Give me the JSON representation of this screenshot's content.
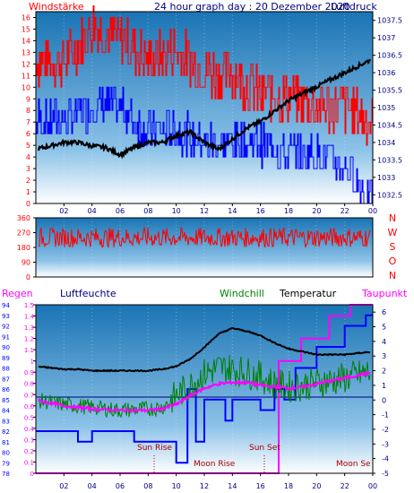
{
  "colors": {
    "red": "#ff0000",
    "blue": "#0000ff",
    "black": "#000000",
    "green": "#008000",
    "magenta": "#ff00ff",
    "navy": "#000080",
    "plot_top": "#1a74b4",
    "plot_bottom": "#ffffff"
  },
  "header": {
    "left": "Windstärke",
    "center": "24 hour graph day : 20 Dezember 2020",
    "right": "Luftdruck"
  },
  "wind_dir_labels": [
    "N",
    "W",
    "S",
    "O",
    "N"
  ],
  "panel3_legend": {
    "regen": "Regen",
    "luftfeuchte": "Luftfeuchte",
    "windchill": "Windchill",
    "temperatur": "Temperatur",
    "taupunkt": "Taupunkt"
  },
  "annotations": {
    "sun_rise": "Sun Rise",
    "moon_rise": "Moon Rise",
    "sun_set": "Sun Set",
    "moon_set": "Moon Se"
  },
  "chart_data": [
    {
      "type": "line",
      "title": "24 hour graph day : 20 Dezember 2020",
      "x_ticks": [
        "02",
        "04",
        "06",
        "08",
        "10",
        "12",
        "14",
        "16",
        "18",
        "20",
        "22",
        "00"
      ],
      "y_left_label": "Windstärke",
      "y_left_ticks": [
        "0",
        "1",
        "2",
        "3",
        "4",
        "5",
        "6",
        "7",
        "8",
        "9",
        "10",
        "11",
        "12",
        "13",
        "14",
        "15",
        "16"
      ],
      "y_left_range": [
        0,
        16.5
      ],
      "y_right_label": "Luftdruck",
      "y_right_ticks": [
        "1032.5",
        "1033",
        "1033.5",
        "1034",
        "1034.5",
        "1035",
        "1035.5",
        "1036",
        "1036.5",
        "1037",
        "1037.5"
      ],
      "y_right_range": [
        1032.25,
        1037.75
      ],
      "series": [
        {
          "color": "#ff0000",
          "x_hours": [
            0,
            2,
            4,
            6,
            8,
            10,
            12,
            14,
            16,
            18,
            20,
            22,
            24
          ],
          "values": [
            13,
            13,
            16,
            15,
            13,
            14,
            12,
            12,
            10,
            10,
            9,
            9,
            8
          ]
        },
        {
          "color": "#0000ff",
          "x_hours": [
            0,
            2,
            4,
            6,
            8,
            10,
            12,
            14,
            16,
            18,
            20,
            22,
            24
          ],
          "values": [
            8,
            8,
            9,
            9,
            7,
            7,
            6,
            6,
            6,
            5,
            5,
            4,
            1
          ]
        },
        {
          "color": "#000000",
          "x_hours": [
            0,
            1,
            2,
            3,
            4,
            5,
            6,
            7,
            8,
            9,
            10,
            11,
            12,
            13,
            14,
            15,
            16,
            17,
            18,
            19,
            20,
            21,
            22,
            23,
            24
          ],
          "values": [
            1033.8,
            1033.9,
            1034.0,
            1034.0,
            1033.9,
            1033.85,
            1033.65,
            1033.85,
            1034.0,
            1034.0,
            1034.2,
            1034.3,
            1034.0,
            1033.8,
            1034.1,
            1034.4,
            1034.6,
            1034.9,
            1035.2,
            1035.4,
            1035.6,
            1035.8,
            1036.0,
            1036.2,
            1036.4
          ]
        }
      ]
    },
    {
      "type": "line",
      "y_ticks": [
        "0",
        "90",
        "180",
        "270",
        "360"
      ],
      "y_range": [
        0,
        360
      ],
      "series": [
        {
          "color": "#ff0000",
          "min_deg": 180,
          "max_deg": 300
        }
      ]
    },
    {
      "type": "line",
      "y_left1_label": "Regen",
      "y_left1_ticks": [
        "0",
        "0.1",
        "0.2",
        "0.3",
        "0.4",
        "0.5",
        "0.6",
        "0.7",
        "0.8",
        "0.9",
        "1",
        "1.1",
        "1.2",
        "1.3",
        "1.4",
        "1.5"
      ],
      "y_left1_range": [
        0,
        1.5
      ],
      "y_left2_label": "Luftfeuchte",
      "y_left2_ticks": [
        "78",
        "79",
        "80",
        "81",
        "82",
        "83",
        "84",
        "85",
        "86",
        "87",
        "88",
        "89",
        "90",
        "91",
        "92",
        "93",
        "94"
      ],
      "y_left2_range": [
        78,
        94
      ],
      "y_right_label": "Temperatur",
      "y_right_ticks": [
        "-5",
        "-4",
        "-3",
        "-2",
        "-1",
        "0",
        "1",
        "2",
        "3",
        "4",
        "5",
        "6"
      ],
      "y_right_range": [
        -5,
        6.5
      ],
      "series": [
        {
          "name": "Regen",
          "color": "#ff00ff",
          "x_hours": [
            0,
            17.3,
            17.3,
            18.9,
            18.9,
            20.9,
            20.9,
            22.4,
            22.4,
            24
          ],
          "values": [
            0,
            0,
            1,
            1,
            1.2,
            1.2,
            1.4,
            1.4,
            1.5,
            1.5
          ]
        },
        {
          "name": "Luftfeuchte",
          "color": "#0000ff",
          "x_hours": [
            0,
            3,
            3,
            4,
            4,
            7,
            7,
            10,
            10,
            10.8,
            10.8,
            11.4,
            11.4,
            12,
            12,
            13.5,
            13.5,
            14,
            14,
            16,
            16,
            17,
            17,
            17.7,
            17.7,
            18.5,
            18.5,
            20,
            20,
            22,
            22,
            23.5,
            23.5,
            24
          ],
          "values": [
            82,
            82,
            81,
            81,
            82,
            82,
            81,
            81,
            79,
            79,
            86,
            86,
            81,
            81,
            85,
            85,
            83,
            83,
            85,
            85,
            84,
            84,
            86,
            86,
            85,
            85,
            88,
            88,
            90,
            90,
            92,
            92,
            93,
            93
          ]
        },
        {
          "name": "Temperatur",
          "color": "#000000",
          "x_hours": [
            0,
            1,
            2,
            3,
            4,
            5,
            6,
            7,
            8,
            9,
            10,
            11,
            12,
            13,
            14,
            15,
            16,
            17,
            18,
            19,
            20,
            21,
            22,
            23,
            24
          ],
          "values": [
            2.3,
            2.2,
            2.1,
            2.1,
            2.0,
            2.0,
            2.0,
            2.0,
            2.0,
            2.1,
            2.3,
            2.8,
            3.6,
            4.5,
            4.9,
            4.7,
            4.4,
            3.9,
            3.5,
            3.3,
            3.1,
            3.1,
            3.1,
            3.2,
            3.3
          ]
        },
        {
          "name": "Windchill",
          "color": "#008000",
          "x_hours": [
            0,
            2,
            4,
            6,
            8,
            9,
            10,
            11,
            12,
            13,
            14,
            15,
            16,
            17,
            18,
            19,
            20,
            21,
            22,
            23,
            24
          ],
          "values": [
            0,
            -0.3,
            -0.5,
            -0.7,
            -0.6,
            -0.5,
            0.3,
            1.0,
            1.8,
            2.2,
            2.1,
            1.9,
            1.6,
            1.1,
            0.9,
            1.0,
            1.2,
            1.3,
            1.5,
            1.7,
            2.0
          ]
        },
        {
          "name": "Taupunkt",
          "color": "#ff00ff",
          "x_hours": [
            0,
            2,
            4,
            6,
            8,
            9,
            10,
            11,
            12,
            13,
            14,
            15,
            16,
            17,
            18,
            19,
            20,
            21,
            22,
            23,
            24
          ],
          "values": [
            0,
            -0.4,
            -0.6,
            -0.7,
            -0.7,
            -0.6,
            -0.3,
            0.3,
            0.8,
            1.1,
            1.2,
            1.2,
            1.0,
            0.9,
            0.8,
            0.9,
            1.1,
            1.3,
            1.5,
            1.7,
            1.9
          ]
        }
      ]
    }
  ]
}
